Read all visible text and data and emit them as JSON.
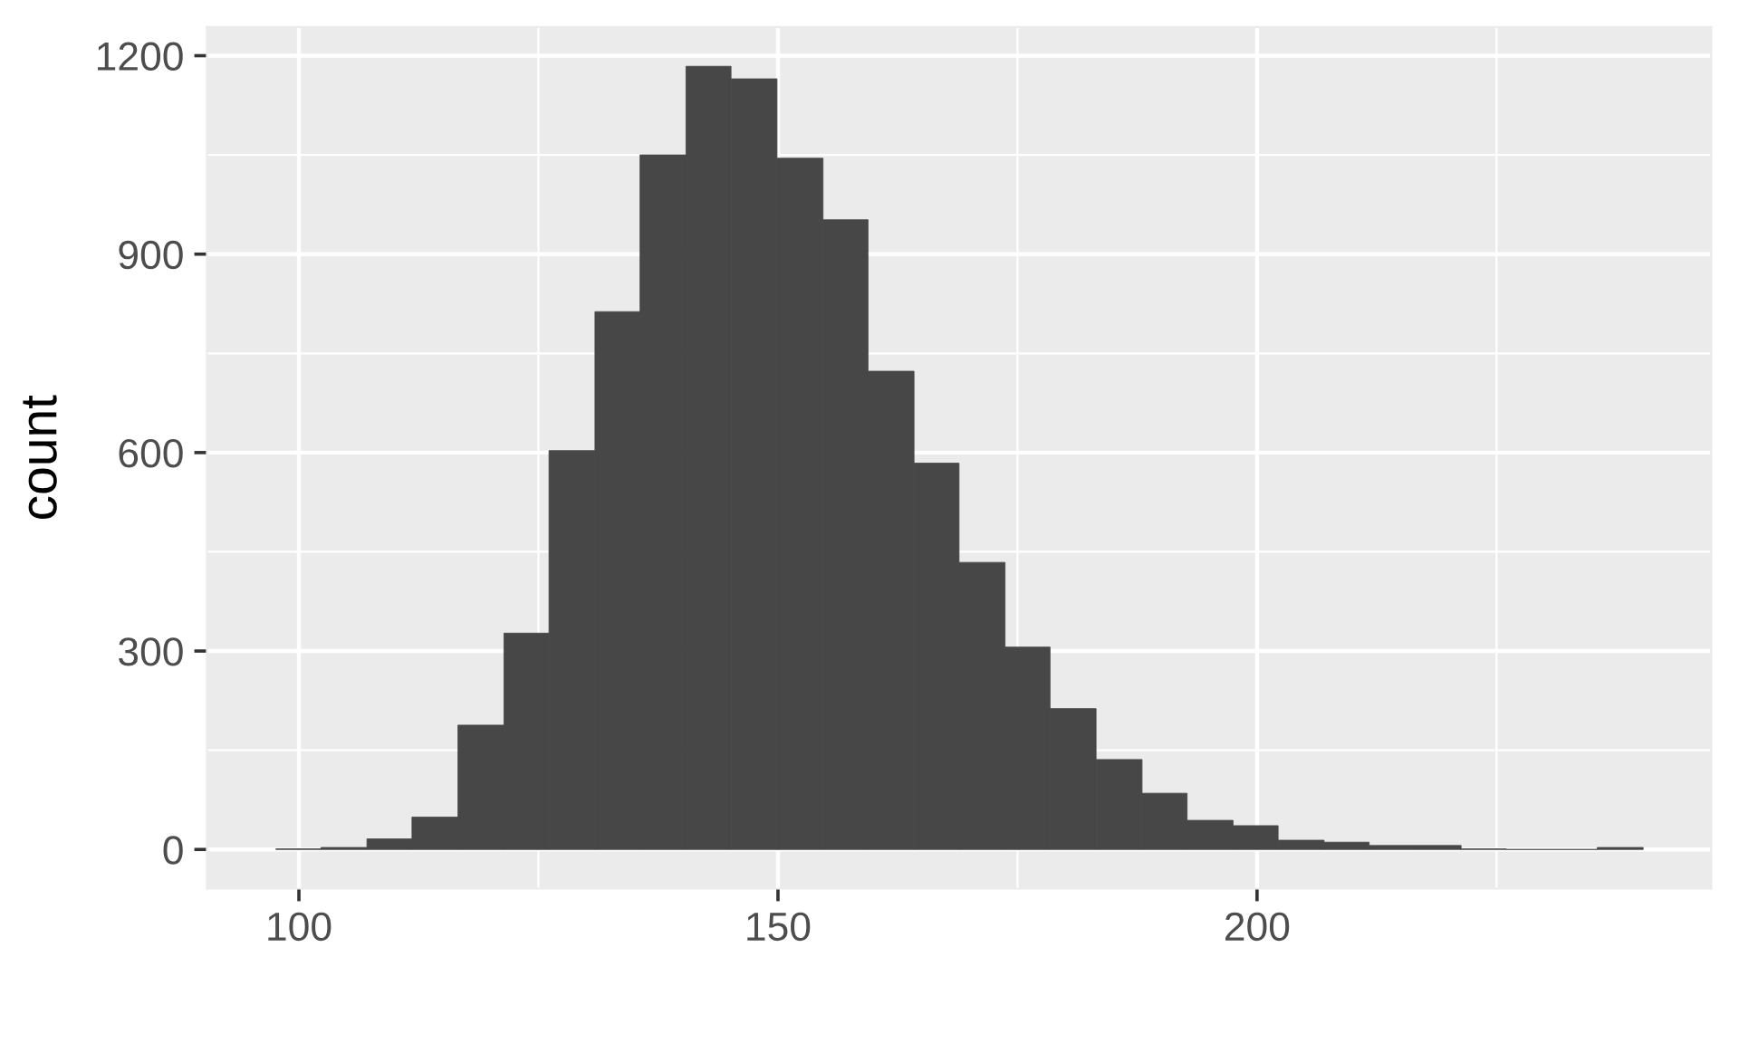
{
  "chart_data": {
    "type": "histogram",
    "ylabel": "count",
    "bins": [
      97.6,
      102.3,
      107.1,
      111.8,
      116.6,
      121.4,
      126.1,
      130.9,
      135.6,
      140.4,
      145.1,
      149.9,
      154.7,
      159.4,
      164.2,
      168.9,
      173.7,
      178.4,
      183.2,
      188.0,
      192.7,
      197.5,
      202.2,
      207.0,
      211.7,
      216.5,
      221.3,
      226.0,
      235.5,
      240.3
    ],
    "values": [
      1,
      3,
      16,
      49,
      188,
      327,
      603,
      813,
      1050,
      1184,
      1165,
      1045,
      952,
      723,
      584,
      434,
      306,
      213,
      136,
      85,
      44,
      36,
      14,
      11,
      6,
      6,
      1,
      0,
      3
    ],
    "color": "#474747",
    "xlim": [
      90.4,
      247.4
    ],
    "ylim": [
      -59.2,
      1243.2
    ],
    "xticks": [
      100,
      150,
      200
    ],
    "yticks": [
      0,
      300,
      600,
      900,
      1200
    ],
    "grid": true
  }
}
